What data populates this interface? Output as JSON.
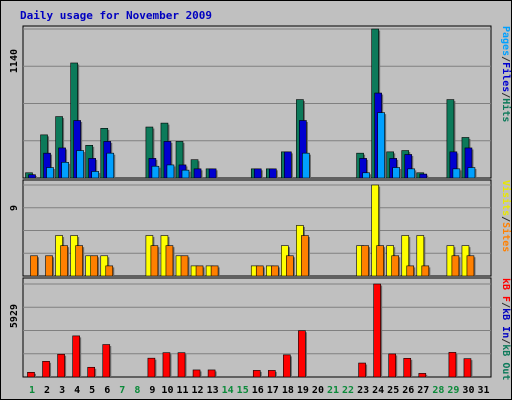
{
  "chart_data": {
    "type": "bar",
    "title": "Daily usage for November 2009",
    "x": [
      "1",
      "2",
      "3",
      "4",
      "5",
      "6",
      "7",
      "8",
      "9",
      "10",
      "11",
      "12",
      "13",
      "14",
      "15",
      "16",
      "17",
      "18",
      "19",
      "20",
      "21",
      "22",
      "23",
      "24",
      "25",
      "26",
      "27",
      "28",
      "29",
      "30",
      "31"
    ],
    "weekend_days": [
      "1",
      "7",
      "8",
      "14",
      "15",
      "21",
      "22",
      "28",
      "29"
    ],
    "panels": [
      {
        "id": "top",
        "ymax_label": "1140",
        "ymax": 1140,
        "right_label": [
          {
            "text": "Pages",
            "color": "#00a0ff"
          },
          {
            "text": "/",
            "color": "#303030"
          },
          {
            "text": "Files",
            "color": "#0000d0"
          },
          {
            "text": "/",
            "color": "#303030"
          },
          {
            "text": "Hits",
            "color": "#0c7a5a"
          }
        ],
        "series": [
          {
            "name": "Hits",
            "color": "#0c7a5a",
            "values": [
              40,
              330,
              470,
              880,
              250,
              380,
              0,
              0,
              390,
              420,
              280,
              140,
              70,
              0,
              0,
              70,
              70,
              200,
              600,
              0,
              0,
              0,
              190,
              1140,
              200,
              210,
              40,
              0,
              600,
              310,
              0
            ]
          },
          {
            "name": "Files",
            "color": "#0000d0",
            "values": [
              25,
              190,
              230,
              440,
              150,
              280,
              0,
              0,
              150,
              280,
              100,
              70,
              70,
              0,
              0,
              70,
              70,
              200,
              440,
              0,
              0,
              0,
              150,
              650,
              150,
              180,
              30,
              0,
              200,
              230,
              0
            ]
          },
          {
            "name": "Pages",
            "color": "#00a0ff",
            "values": [
              0,
              80,
              120,
              210,
              50,
              190,
              0,
              0,
              90,
              100,
              60,
              0,
              0,
              0,
              0,
              0,
              0,
              0,
              190,
              0,
              0,
              0,
              40,
              500,
              80,
              70,
              0,
              0,
              70,
              80,
              0
            ]
          }
        ]
      },
      {
        "id": "mid",
        "ymax_label": "9",
        "ymax": 9,
        "right_label": [
          {
            "text": "Visits",
            "color": "#e8e800"
          },
          {
            "text": "/",
            "color": "#303030"
          },
          {
            "text": "Sites",
            "color": "#ff8000"
          }
        ],
        "series": [
          {
            "name": "Visits",
            "color": "#ffff00",
            "values": [
              0,
              0,
              4,
              4,
              2,
              2,
              0,
              0,
              4,
              4,
              2,
              1,
              1,
              0,
              0,
              1,
              1,
              3,
              5,
              0,
              0,
              0,
              3,
              9,
              3,
              4,
              4,
              0,
              3,
              3,
              0
            ]
          },
          {
            "name": "Sites",
            "color": "#ff8000",
            "values": [
              2,
              2,
              3,
              3,
              2,
              1,
              0,
              0,
              3,
              3,
              2,
              1,
              1,
              0,
              0,
              1,
              1,
              2,
              4,
              0,
              0,
              0,
              3,
              3,
              2,
              1,
              1,
              0,
              2,
              2,
              0
            ]
          }
        ]
      },
      {
        "id": "bot",
        "ymax_label": "5929",
        "ymax": 5929,
        "right_label": [
          {
            "text": "kB F",
            "color": "#ff0000"
          },
          {
            "text": "/",
            "color": "#303030"
          },
          {
            "text": "kB In",
            "color": "#0000c0"
          },
          {
            "text": "/",
            "color": "#303030"
          },
          {
            "text": "kB Out",
            "color": "#0c7a5a"
          }
        ],
        "series": [
          {
            "name": "kB F",
            "color": "#ff0000",
            "values": [
              300,
              1000,
              1450,
              2620,
              620,
              2070,
              0,
              0,
              1200,
              1550,
              1550,
              450,
              450,
              0,
              0,
              420,
              420,
              1410,
              2950,
              0,
              0,
              0,
              890,
              5929,
              1470,
              1190,
              230,
              0,
              1570,
              1170,
              0
            ]
          }
        ]
      }
    ]
  }
}
